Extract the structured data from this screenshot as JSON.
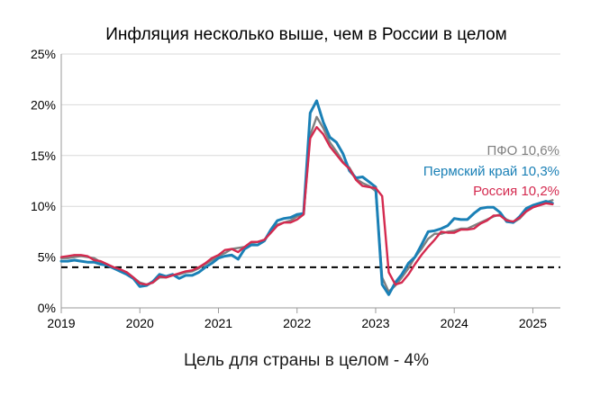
{
  "chart_data": {
    "type": "line",
    "title": "Инфляция несколько выше, чем в России в целом",
    "caption": "Цель для страны в целом - 4%",
    "xlabel": "",
    "ylabel": "",
    "xlim": [
      2019.0,
      2025.35
    ],
    "ylim": [
      0,
      25
    ],
    "x_ticks": [
      2019,
      2020,
      2021,
      2022,
      2023,
      2024,
      2025
    ],
    "x_tick_labels": [
      "2019",
      "2020",
      "2021",
      "2022",
      "2023",
      "2024",
      "2025"
    ],
    "y_ticks": [
      0,
      5,
      10,
      15,
      20,
      25
    ],
    "y_tick_labels": [
      "0%",
      "5%",
      "10%",
      "15%",
      "20%",
      "25%"
    ],
    "grid": "horizontal",
    "target": {
      "value": 4,
      "style": "dashed",
      "color": "#000000"
    },
    "legend_position": "right",
    "series": [
      {
        "name": "ПФО",
        "label": "ПФО 10,6%",
        "color": "#808080",
        "points": [
          [
            2019.0,
            4.9
          ],
          [
            2019.083,
            4.9
          ],
          [
            2019.167,
            5.0
          ],
          [
            2019.25,
            5.1
          ],
          [
            2019.333,
            5.0
          ],
          [
            2019.417,
            4.9
          ],
          [
            2019.5,
            4.5
          ],
          [
            2019.583,
            4.3
          ],
          [
            2019.667,
            3.9
          ],
          [
            2019.75,
            3.7
          ],
          [
            2019.833,
            3.5
          ],
          [
            2019.917,
            3.0
          ],
          [
            2020.0,
            2.5
          ],
          [
            2020.083,
            2.3
          ],
          [
            2020.167,
            2.5
          ],
          [
            2020.25,
            3.0
          ],
          [
            2020.333,
            3.0
          ],
          [
            2020.417,
            3.2
          ],
          [
            2020.5,
            3.3
          ],
          [
            2020.583,
            3.5
          ],
          [
            2020.667,
            3.6
          ],
          [
            2020.75,
            3.9
          ],
          [
            2020.833,
            4.3
          ],
          [
            2020.917,
            4.7
          ],
          [
            2021.0,
            5.1
          ],
          [
            2021.083,
            5.4
          ],
          [
            2021.167,
            5.8
          ],
          [
            2021.25,
            5.9
          ],
          [
            2021.333,
            6.0
          ],
          [
            2021.417,
            6.4
          ],
          [
            2021.5,
            6.5
          ],
          [
            2021.583,
            6.7
          ],
          [
            2021.667,
            7.5
          ],
          [
            2021.75,
            8.2
          ],
          [
            2021.833,
            8.4
          ],
          [
            2021.917,
            8.6
          ],
          [
            2022.0,
            9.0
          ],
          [
            2022.083,
            9.2
          ],
          [
            2022.167,
            17.0
          ],
          [
            2022.25,
            18.8
          ],
          [
            2022.333,
            17.7
          ],
          [
            2022.417,
            16.3
          ],
          [
            2022.5,
            15.4
          ],
          [
            2022.583,
            14.4
          ],
          [
            2022.667,
            13.8
          ],
          [
            2022.75,
            12.7
          ],
          [
            2022.833,
            12.3
          ],
          [
            2022.917,
            12.0
          ],
          [
            2023.0,
            11.5
          ],
          [
            2023.083,
            3.0
          ],
          [
            2023.167,
            1.6
          ],
          [
            2023.25,
            2.2
          ],
          [
            2023.333,
            3.0
          ],
          [
            2023.417,
            3.9
          ],
          [
            2023.5,
            5.0
          ],
          [
            2023.583,
            5.8
          ],
          [
            2023.667,
            6.8
          ],
          [
            2023.75,
            7.3
          ],
          [
            2023.833,
            7.3
          ],
          [
            2023.917,
            7.5
          ],
          [
            2024.0,
            7.6
          ],
          [
            2024.083,
            7.8
          ],
          [
            2024.167,
            7.8
          ],
          [
            2024.25,
            8.1
          ],
          [
            2024.333,
            8.4
          ],
          [
            2024.417,
            8.7
          ],
          [
            2024.5,
            9.0
          ],
          [
            2024.583,
            9.2
          ],
          [
            2024.667,
            8.7
          ],
          [
            2024.75,
            8.4
          ],
          [
            2024.833,
            8.8
          ],
          [
            2024.917,
            9.5
          ],
          [
            2025.0,
            9.9
          ],
          [
            2025.083,
            10.2
          ],
          [
            2025.167,
            10.4
          ],
          [
            2025.25,
            10.6
          ]
        ]
      },
      {
        "name": "Пермский край",
        "label": "Пермский край 10,3%",
        "color": "#1a80b6",
        "points": [
          [
            2019.0,
            4.6
          ],
          [
            2019.083,
            4.6
          ],
          [
            2019.167,
            4.7
          ],
          [
            2019.25,
            4.6
          ],
          [
            2019.333,
            4.5
          ],
          [
            2019.417,
            4.5
          ],
          [
            2019.5,
            4.3
          ],
          [
            2019.583,
            4.2
          ],
          [
            2019.667,
            3.9
          ],
          [
            2019.75,
            3.6
          ],
          [
            2019.833,
            3.3
          ],
          [
            2019.917,
            2.9
          ],
          [
            2020.0,
            2.1
          ],
          [
            2020.083,
            2.2
          ],
          [
            2020.167,
            2.6
          ],
          [
            2020.25,
            3.3
          ],
          [
            2020.333,
            3.1
          ],
          [
            2020.417,
            3.3
          ],
          [
            2020.5,
            2.9
          ],
          [
            2020.583,
            3.2
          ],
          [
            2020.667,
            3.2
          ],
          [
            2020.75,
            3.5
          ],
          [
            2020.833,
            4.0
          ],
          [
            2020.917,
            4.4
          ],
          [
            2021.0,
            4.9
          ],
          [
            2021.083,
            5.1
          ],
          [
            2021.167,
            5.2
          ],
          [
            2021.25,
            4.8
          ],
          [
            2021.333,
            5.8
          ],
          [
            2021.417,
            6.2
          ],
          [
            2021.5,
            6.2
          ],
          [
            2021.583,
            6.6
          ],
          [
            2021.667,
            7.7
          ],
          [
            2021.75,
            8.6
          ],
          [
            2021.833,
            8.8
          ],
          [
            2021.917,
            8.9
          ],
          [
            2022.0,
            9.2
          ],
          [
            2022.083,
            9.3
          ],
          [
            2022.167,
            19.2
          ],
          [
            2022.25,
            20.4
          ],
          [
            2022.333,
            18.3
          ],
          [
            2022.417,
            16.8
          ],
          [
            2022.5,
            16.3
          ],
          [
            2022.583,
            15.2
          ],
          [
            2022.667,
            13.5
          ],
          [
            2022.75,
            12.8
          ],
          [
            2022.833,
            12.9
          ],
          [
            2022.917,
            12.4
          ],
          [
            2023.0,
            11.9
          ],
          [
            2023.083,
            2.3
          ],
          [
            2023.167,
            1.3
          ],
          [
            2023.25,
            2.5
          ],
          [
            2023.333,
            3.3
          ],
          [
            2023.417,
            4.4
          ],
          [
            2023.5,
            5.0
          ],
          [
            2023.583,
            6.2
          ],
          [
            2023.667,
            7.5
          ],
          [
            2023.75,
            7.6
          ],
          [
            2023.833,
            7.8
          ],
          [
            2023.917,
            8.1
          ],
          [
            2024.0,
            8.8
          ],
          [
            2024.083,
            8.7
          ],
          [
            2024.167,
            8.7
          ],
          [
            2024.25,
            9.3
          ],
          [
            2024.333,
            9.8
          ],
          [
            2024.417,
            9.9
          ],
          [
            2024.5,
            9.9
          ],
          [
            2024.583,
            9.4
          ],
          [
            2024.667,
            8.5
          ],
          [
            2024.75,
            8.4
          ],
          [
            2024.833,
            9.0
          ],
          [
            2024.917,
            9.8
          ],
          [
            2025.0,
            10.1
          ],
          [
            2025.083,
            10.3
          ],
          [
            2025.167,
            10.5
          ],
          [
            2025.25,
            10.3
          ]
        ]
      },
      {
        "name": "Россия",
        "label": "Россия 10,2%",
        "color": "#d42a4f",
        "points": [
          [
            2019.0,
            5.0
          ],
          [
            2019.083,
            5.1
          ],
          [
            2019.167,
            5.2
          ],
          [
            2019.25,
            5.2
          ],
          [
            2019.333,
            5.1
          ],
          [
            2019.417,
            4.7
          ],
          [
            2019.5,
            4.6
          ],
          [
            2019.583,
            4.3
          ],
          [
            2019.667,
            4.0
          ],
          [
            2019.75,
            3.8
          ],
          [
            2019.833,
            3.5
          ],
          [
            2019.917,
            3.0
          ],
          [
            2020.0,
            2.4
          ],
          [
            2020.083,
            2.3
          ],
          [
            2020.167,
            2.5
          ],
          [
            2020.25,
            3.1
          ],
          [
            2020.333,
            3.0
          ],
          [
            2020.417,
            3.2
          ],
          [
            2020.5,
            3.4
          ],
          [
            2020.583,
            3.6
          ],
          [
            2020.667,
            3.7
          ],
          [
            2020.75,
            4.0
          ],
          [
            2020.833,
            4.4
          ],
          [
            2020.917,
            4.9
          ],
          [
            2021.0,
            5.2
          ],
          [
            2021.083,
            5.7
          ],
          [
            2021.167,
            5.8
          ],
          [
            2021.25,
            5.5
          ],
          [
            2021.333,
            6.0
          ],
          [
            2021.417,
            6.5
          ],
          [
            2021.5,
            6.5
          ],
          [
            2021.583,
            6.7
          ],
          [
            2021.667,
            7.4
          ],
          [
            2021.75,
            8.1
          ],
          [
            2021.833,
            8.4
          ],
          [
            2021.917,
            8.4
          ],
          [
            2022.0,
            8.7
          ],
          [
            2022.083,
            9.2
          ],
          [
            2022.167,
            16.7
          ],
          [
            2022.25,
            17.8
          ],
          [
            2022.333,
            17.1
          ],
          [
            2022.417,
            15.9
          ],
          [
            2022.5,
            15.1
          ],
          [
            2022.583,
            14.3
          ],
          [
            2022.667,
            13.7
          ],
          [
            2022.75,
            12.6
          ],
          [
            2022.833,
            12.0
          ],
          [
            2022.917,
            11.9
          ],
          [
            2023.0,
            11.8
          ],
          [
            2023.083,
            11.0
          ],
          [
            2023.167,
            3.5
          ],
          [
            2023.25,
            2.3
          ],
          [
            2023.333,
            2.5
          ],
          [
            2023.417,
            3.3
          ],
          [
            2023.5,
            4.3
          ],
          [
            2023.583,
            5.2
          ],
          [
            2023.667,
            6.0
          ],
          [
            2023.75,
            6.7
          ],
          [
            2023.833,
            7.5
          ],
          [
            2023.917,
            7.4
          ],
          [
            2024.0,
            7.4
          ],
          [
            2024.083,
            7.7
          ],
          [
            2024.167,
            7.7
          ],
          [
            2024.25,
            7.8
          ],
          [
            2024.333,
            8.3
          ],
          [
            2024.417,
            8.6
          ],
          [
            2024.5,
            9.1
          ],
          [
            2024.583,
            9.1
          ],
          [
            2024.667,
            8.6
          ],
          [
            2024.75,
            8.5
          ],
          [
            2024.833,
            8.9
          ],
          [
            2024.917,
            9.5
          ],
          [
            2025.0,
            9.9
          ],
          [
            2025.083,
            10.1
          ],
          [
            2025.167,
            10.3
          ],
          [
            2025.25,
            10.2
          ]
        ]
      }
    ]
  }
}
